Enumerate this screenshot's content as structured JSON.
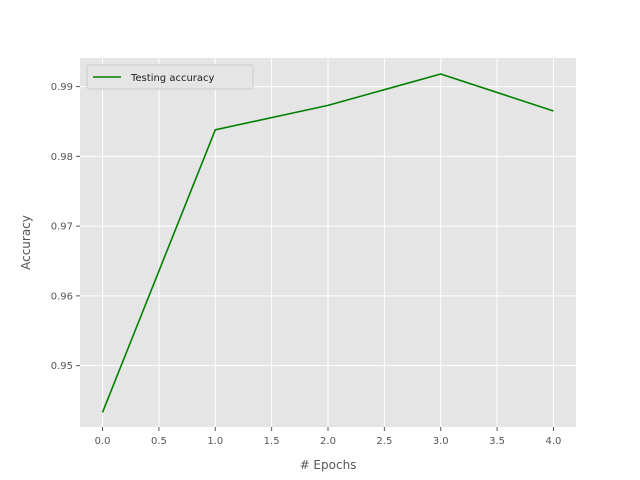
{
  "chart_data": {
    "type": "line",
    "title": "",
    "xlabel": "# Epochs",
    "ylabel": "Accuracy",
    "xlim": [
      -0.2,
      4.2
    ],
    "ylim": [
      0.9412,
      0.9941
    ],
    "xticks": [
      0.0,
      0.5,
      1.0,
      1.5,
      2.0,
      2.5,
      3.0,
      3.5,
      4.0
    ],
    "xtick_labels": [
      "0.0",
      "0.5",
      "1.0",
      "1.5",
      "2.0",
      "2.5",
      "3.0",
      "3.5",
      "4.0"
    ],
    "yticks": [
      0.95,
      0.96,
      0.97,
      0.98,
      0.99
    ],
    "ytick_labels": [
      "0.95",
      "0.96",
      "0.97",
      "0.98",
      "0.99"
    ],
    "grid": true,
    "legend_position": "top-left",
    "series": [
      {
        "name": "Testing accuracy",
        "color": "#008000",
        "x": [
          0,
          1,
          2,
          3,
          4
        ],
        "y": [
          0.9433,
          0.9838,
          0.9873,
          0.9918,
          0.9865
        ]
      }
    ],
    "colors": {
      "plot_background": "#e5e5e5",
      "grid": "#ffffff",
      "text": "#555555"
    }
  }
}
